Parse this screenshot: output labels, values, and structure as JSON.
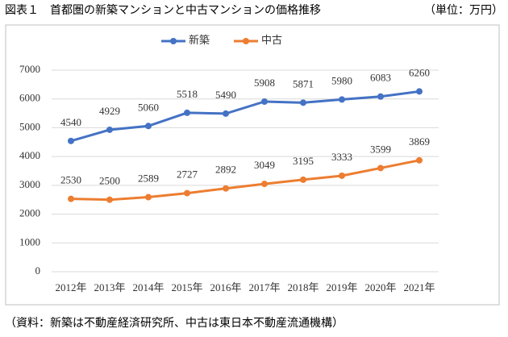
{
  "header": {
    "title": "図表１　首都圏の新築マンションと中古マンションの価格推移",
    "unit": "（単位：万円）"
  },
  "chart_data": {
    "type": "line",
    "categories": [
      "2012年",
      "2013年",
      "2014年",
      "2015年",
      "2016年",
      "2017年",
      "2018年",
      "2019年",
      "2020年",
      "2021年"
    ],
    "series": [
      {
        "name": "新築",
        "color": "#4472c4",
        "values": [
          4540,
          4929,
          5060,
          5518,
          5490,
          5908,
          5871,
          5980,
          6083,
          6260
        ]
      },
      {
        "name": "中古",
        "color": "#ed7d31",
        "values": [
          2530,
          2500,
          2589,
          2727,
          2892,
          3049,
          3195,
          3333,
          3599,
          3869
        ]
      }
    ],
    "ylim": [
      0,
      7000
    ],
    "yticks": [
      0,
      1000,
      2000,
      3000,
      4000,
      5000,
      6000,
      7000
    ],
    "grid": true,
    "legend": "top"
  },
  "footer": {
    "source": "（資料：新築は不動産経済研究所、中古は東日本不動産流通機構）"
  }
}
